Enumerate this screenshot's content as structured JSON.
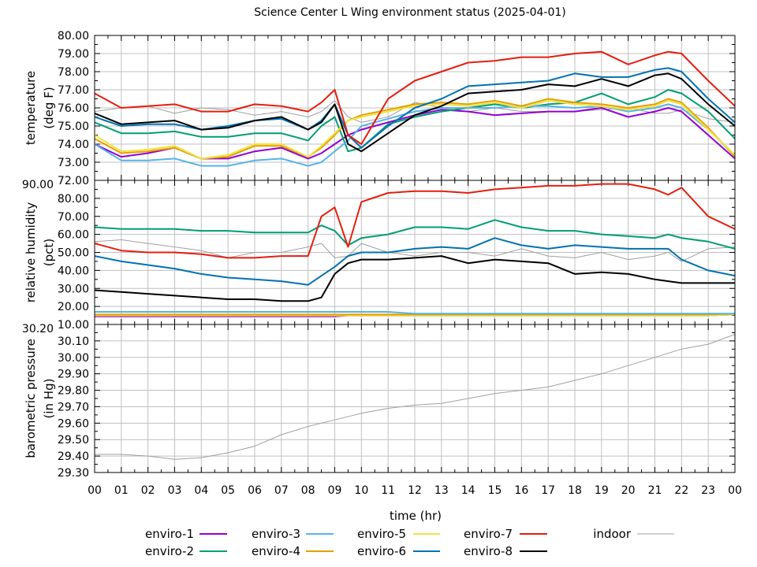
{
  "title": "Science Center L Wing environment status (2025-04-01)",
  "xlabel": "time (hr)",
  "x_tick_labels": [
    "00",
    "01",
    "02",
    "03",
    "04",
    "05",
    "06",
    "07",
    "08",
    "09",
    "10",
    "11",
    "12",
    "13",
    "14",
    "15",
    "16",
    "17",
    "18",
    "19",
    "20",
    "21",
    "22",
    "23",
    "00"
  ],
  "legend": {
    "placement": "bottom",
    "entries": [
      "enviro-1",
      "enviro-2",
      "enviro-3",
      "enviro-4",
      "enviro-5",
      "enviro-6",
      "enviro-7",
      "enviro-8",
      "indoor"
    ]
  },
  "colors": {
    "enviro-1": "#9400d3",
    "enviro-2": "#009e73",
    "enviro-3": "#56b4e9",
    "enviro-4": "#e69f00",
    "enviro-5": "#f0e442",
    "enviro-6": "#0072b2",
    "enviro-7": "#e51e10",
    "enviro-8": "#000000",
    "indoor": "#a0a0a0"
  },
  "chart_data": [
    {
      "type": "line",
      "ylabel": [
        "temperature",
        "(deg F)"
      ],
      "ylim": [
        72,
        80
      ],
      "y_tick_labels": [
        "72.00",
        "73.00",
        "74.00",
        "75.00",
        "76.00",
        "77.00",
        "78.00",
        "79.00",
        "80.00"
      ],
      "xlim": [
        0,
        24
      ],
      "grid": true,
      "x": [
        0,
        1,
        2,
        3,
        4,
        5,
        6,
        7,
        8,
        8.5,
        9,
        9.5,
        10,
        11,
        12,
        13,
        14,
        15,
        16,
        17,
        18,
        19,
        20,
        21,
        21.5,
        22,
        23,
        24
      ],
      "series": [
        {
          "name": "indoor",
          "values": [
            75.8,
            76.0,
            76.1,
            75.7,
            76.0,
            75.9,
            75.6,
            75.8,
            75.5,
            75.8,
            76.4,
            75.5,
            75.2,
            75.5,
            76.3,
            76.0,
            75.8,
            76.0,
            75.8,
            75.8,
            75.8,
            75.9,
            76.0,
            75.7,
            75.7,
            75.9,
            75.4,
            75.2
          ]
        },
        {
          "name": "enviro-1",
          "values": [
            74.0,
            73.3,
            73.5,
            73.8,
            73.2,
            73.2,
            73.6,
            73.8,
            73.2,
            73.5,
            74.0,
            74.5,
            74.8,
            75.2,
            75.6,
            75.9,
            75.8,
            75.6,
            75.7,
            75.8,
            75.8,
            76.0,
            75.5,
            75.8,
            76.0,
            75.8,
            74.5,
            73.2
          ]
        },
        {
          "name": "enviro-2",
          "values": [
            75.2,
            74.6,
            74.6,
            74.7,
            74.4,
            74.4,
            74.6,
            74.6,
            74.2,
            75.0,
            75.5,
            73.6,
            73.8,
            75.1,
            75.5,
            75.8,
            76.0,
            76.2,
            76.0,
            76.2,
            76.3,
            76.8,
            76.2,
            76.6,
            77.0,
            76.8,
            75.8,
            74.3
          ]
        },
        {
          "name": "enviro-3",
          "values": [
            74.0,
            73.1,
            73.1,
            73.2,
            72.8,
            72.8,
            73.1,
            73.2,
            72.8,
            73.0,
            73.6,
            74.2,
            75.0,
            75.4,
            75.8,
            76.0,
            76.0,
            76.0,
            76.1,
            76.1,
            76.0,
            76.1,
            75.8,
            76.0,
            76.2,
            76.0,
            74.8,
            73.4
          ]
        },
        {
          "name": "enviro-4",
          "values": [
            74.3,
            73.5,
            73.6,
            73.8,
            73.2,
            73.3,
            73.9,
            73.9,
            73.3,
            73.8,
            74.5,
            75.3,
            75.6,
            75.9,
            76.2,
            76.3,
            76.2,
            76.4,
            76.1,
            76.5,
            76.3,
            76.2,
            76.0,
            76.2,
            76.5,
            76.3,
            74.9,
            73.3
          ]
        },
        {
          "name": "enviro-5",
          "values": [
            74.5,
            73.6,
            73.7,
            73.9,
            73.2,
            73.4,
            74.0,
            74.0,
            73.3,
            73.9,
            74.6,
            75.3,
            75.5,
            75.8,
            76.1,
            76.2,
            76.1,
            76.3,
            76.0,
            76.4,
            76.2,
            76.1,
            75.9,
            76.1,
            76.4,
            76.2,
            74.8,
            73.4
          ]
        },
        {
          "name": "enviro-6",
          "values": [
            75.5,
            75.0,
            75.1,
            75.1,
            74.8,
            75.0,
            75.3,
            75.4,
            74.8,
            75.3,
            76.2,
            74.5,
            73.8,
            75.0,
            76.0,
            76.5,
            77.2,
            77.3,
            77.4,
            77.5,
            77.9,
            77.7,
            77.7,
            78.1,
            78.2,
            78.0,
            76.5,
            75.2
          ]
        },
        {
          "name": "enviro-7",
          "values": [
            76.8,
            76.0,
            76.1,
            76.2,
            75.8,
            75.8,
            76.2,
            76.1,
            75.8,
            76.3,
            77.0,
            74.5,
            74.0,
            76.5,
            77.5,
            78.0,
            78.5,
            78.6,
            78.8,
            78.8,
            79.0,
            79.1,
            78.4,
            78.9,
            79.1,
            79.0,
            77.5,
            76.1
          ]
        },
        {
          "name": "enviro-8",
          "values": [
            75.7,
            75.1,
            75.2,
            75.3,
            74.8,
            74.9,
            75.3,
            75.5,
            74.8,
            75.2,
            76.2,
            74.0,
            73.6,
            74.6,
            75.6,
            76.1,
            76.8,
            76.9,
            77.0,
            77.3,
            77.2,
            77.6,
            77.2,
            77.8,
            77.9,
            77.6,
            76.2,
            75.0
          ]
        }
      ]
    },
    {
      "type": "line",
      "ylabel": [
        "relative humidity",
        "(pct)"
      ],
      "ylim": [
        10,
        90
      ],
      "y_tick_labels": [
        "10.00",
        "20.00",
        "30.00",
        "40.00",
        "50.00",
        "60.00",
        "70.00",
        "80.00",
        "90.00"
      ],
      "xlim": [
        0,
        24
      ],
      "grid": true,
      "x": [
        0,
        1,
        2,
        3,
        4,
        5,
        6,
        7,
        8,
        8.5,
        9,
        9.5,
        10,
        11,
        12,
        13,
        14,
        15,
        16,
        17,
        18,
        19,
        20,
        21,
        21.5,
        22,
        23,
        24
      ],
      "series": [
        {
          "name": "indoor",
          "values": [
            56,
            57,
            55,
            53,
            51,
            47,
            50,
            50,
            53,
            55,
            47,
            48,
            55,
            50,
            48,
            50,
            50,
            48,
            52,
            48,
            47,
            50,
            46,
            48,
            50,
            45,
            52,
            53
          ]
        },
        {
          "name": "enviro-1",
          "values": [
            14.5,
            14.5,
            14.5,
            14.5,
            14.5,
            14.5,
            14.5,
            14.5,
            14.5,
            14.5,
            14.5,
            15,
            15,
            15,
            15,
            15,
            15,
            15,
            15,
            15,
            15,
            15,
            15,
            15,
            15,
            15,
            15,
            15.5
          ]
        },
        {
          "name": "enviro-5",
          "values": [
            15,
            15,
            15,
            15,
            15,
            15,
            15,
            15,
            15,
            15,
            15,
            15,
            15,
            15,
            15,
            15,
            15,
            15,
            15,
            15,
            15,
            15,
            15,
            15,
            15,
            15,
            15,
            15.5
          ]
        },
        {
          "name": "enviro-4",
          "values": [
            15.5,
            15.5,
            15.5,
            15.5,
            15.5,
            15.5,
            15.5,
            15.5,
            15.5,
            15.5,
            15.5,
            15.5,
            15.5,
            15.5,
            15.5,
            15.5,
            15.5,
            15.5,
            15.5,
            15.5,
            15.5,
            15.5,
            15.5,
            15.5,
            15.5,
            15.5,
            15.5,
            16
          ]
        },
        {
          "name": "enviro-3",
          "values": [
            17,
            17,
            17,
            17,
            17,
            17,
            17,
            17,
            17,
            17,
            17,
            17,
            17,
            17,
            16,
            16,
            16,
            16,
            16,
            16,
            16,
            16,
            16,
            16,
            16,
            16,
            16,
            16
          ]
        },
        {
          "name": "enviro-2",
          "values": [
            64,
            63,
            63,
            63,
            62,
            62,
            61,
            61,
            61,
            65,
            62,
            54,
            58,
            60,
            64,
            64,
            63,
            68,
            64,
            62,
            62,
            60,
            59,
            58,
            60,
            58,
            56,
            52
          ]
        },
        {
          "name": "enviro-6",
          "values": [
            48,
            45,
            43,
            41,
            38,
            36,
            35,
            34,
            32,
            37,
            42,
            48,
            50,
            50,
            52,
            53,
            52,
            58,
            54,
            52,
            54,
            53,
            52,
            52,
            52,
            46,
            40,
            37
          ]
        },
        {
          "name": "enviro-7",
          "values": [
            55,
            51,
            50,
            50,
            49,
            47,
            47,
            48,
            48,
            70,
            75,
            53,
            78,
            83,
            84,
            84,
            83,
            85,
            86,
            87,
            87,
            88,
            88,
            85,
            82,
            86,
            70,
            63
          ]
        },
        {
          "name": "enviro-8",
          "values": [
            29,
            28,
            27,
            26,
            25,
            24,
            24,
            23,
            23,
            25,
            38,
            44,
            46,
            46,
            47,
            48,
            44,
            46,
            45,
            44,
            38,
            39,
            38,
            35,
            34,
            33,
            33,
            33
          ]
        }
      ]
    },
    {
      "type": "line",
      "ylabel": [
        "barometric pressure",
        "(in Hg)"
      ],
      "ylim": [
        29.3,
        30.2
      ],
      "y_tick_labels": [
        "29.30",
        "29.40",
        "29.50",
        "29.60",
        "29.70",
        "29.80",
        "29.90",
        "30.00",
        "30.10",
        "30.20"
      ],
      "xlim": [
        0,
        24
      ],
      "grid": true,
      "x": [
        0,
        1,
        2,
        3,
        4,
        5,
        6,
        7,
        8,
        9,
        10,
        11,
        12,
        13,
        14,
        15,
        16,
        17,
        18,
        19,
        20,
        21,
        22,
        23,
        24
      ],
      "series": [
        {
          "name": "indoor",
          "values": [
            29.41,
            29.41,
            29.4,
            29.38,
            29.39,
            29.42,
            29.46,
            29.53,
            29.58,
            29.62,
            29.66,
            29.69,
            29.71,
            29.72,
            29.75,
            29.78,
            29.8,
            29.82,
            29.86,
            29.9,
            29.95,
            30.0,
            30.05,
            30.08,
            30.14
          ]
        }
      ]
    }
  ]
}
